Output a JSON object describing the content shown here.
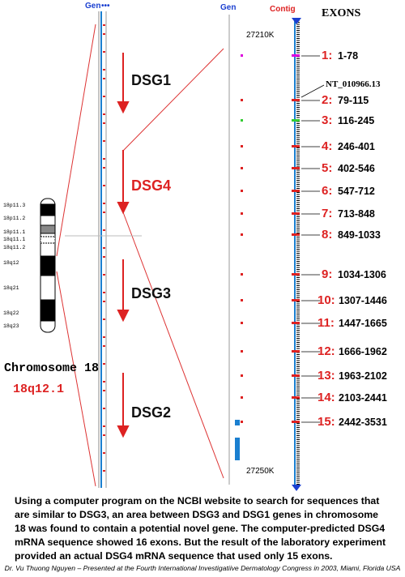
{
  "left_map": {
    "header": "Gen",
    "genes": [
      "DSG1",
      "DSG4",
      "DSG3",
      "DSG2"
    ]
  },
  "chromosome": {
    "bands": [
      "18p11.3",
      "18p11.2",
      "18p11.1",
      "18q11.1",
      "18q11.2",
      "18q12",
      "18q21",
      "18q22",
      "18q23"
    ],
    "title": "Chromosome 18",
    "locus": "18q12.1"
  },
  "detail_map": {
    "gene_header": "Gen",
    "contig_header": "Contig",
    "exons_header": "EXONS",
    "start": "27210K",
    "end": "27250K",
    "contig_id": "NT_010966.13"
  },
  "exons": [
    {
      "number": "1:",
      "range": "1-78"
    },
    {
      "number": "2:",
      "range": "79-115"
    },
    {
      "number": "3:",
      "range": "116-245"
    },
    {
      "number": "4:",
      "range": "246-401"
    },
    {
      "number": "5:",
      "range": "402-546"
    },
    {
      "number": "6:",
      "range": "547-712"
    },
    {
      "number": "7:",
      "range": "713-848"
    },
    {
      "number": "8:",
      "range": "849-1033"
    },
    {
      "number": "9:",
      "range": "1034-1306"
    },
    {
      "number": "10:",
      "range": "1307-1446"
    },
    {
      "number": "11:",
      "range": "1447-1665"
    },
    {
      "number": "12:",
      "range": "1666-1962"
    },
    {
      "number": "13:",
      "range": "1963-2102"
    },
    {
      "number": "14:",
      "range": "2103-2441"
    },
    {
      "number": "15:",
      "range": "2442-3531"
    }
  ],
  "caption": [
    "Using a computer program on the NCBI website to search for sequences that",
    "are similar to DSG3, an area between DSG3 and DSG1 genes in chromosome",
    "18 was found to contain a potential novel gene. The computer-predicted DSG4",
    "mRNA sequence showed 16 exons.  But the result of the laboratory experiment",
    "provided an actual DSG4 mRNA sequence that used only 15 exons."
  ],
  "credit": "Dr. Vu Thuong Nguyen – Presented at the Fourth International Investigatiive Dermatology Congress in 2003, Miami, Florida USA"
}
